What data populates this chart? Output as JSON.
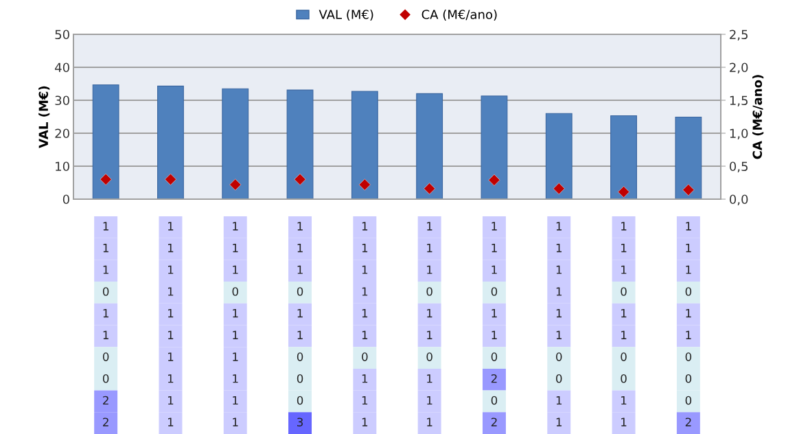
{
  "chart_data": [
    {
      "type": "bar",
      "categories": [
        null,
        null,
        null,
        null,
        null,
        null,
        null,
        null,
        null,
        null
      ],
      "series": [
        {
          "name": "VAL (M€)",
          "type": "bar",
          "color": "#4f81bd",
          "values": [
            34.7,
            34.3,
            33.5,
            33.1,
            32.7,
            32.0,
            31.3,
            26.0,
            25.3,
            24.9
          ]
        },
        {
          "name": "CA (M€/ano)",
          "type": "scatter",
          "axis": "y2",
          "color": "#c00000",
          "marker": "diamond",
          "values": [
            0.3,
            0.3,
            0.22,
            0.3,
            0.22,
            0.16,
            0.29,
            0.16,
            0.11,
            0.14
          ]
        }
      ],
      "ylabel": "VAL (M€)",
      "y2label": "CA (M€/ano)",
      "ylim": [
        0,
        50
      ],
      "yticks": [
        0,
        10,
        20,
        30,
        40,
        50
      ],
      "y2lim": [
        0,
        2.5
      ],
      "y2ticks": [
        {
          "value": 0,
          "label": "0,0"
        },
        {
          "value": 0.5,
          "label": "0,5"
        },
        {
          "value": 1,
          "label": "1,0"
        },
        {
          "value": 1.5,
          "label": "1,5"
        },
        {
          "value": 2,
          "label": "2,0"
        },
        {
          "value": 2.5,
          "label": "2,5"
        }
      ],
      "grid": "y",
      "legend": "top",
      "tick_labels": "y"
    },
    {
      "type": "heatmap",
      "categories": [
        null,
        null,
        null,
        null,
        null,
        null,
        null,
        null,
        null,
        null
      ],
      "y_categories": [
        null,
        null,
        null,
        null,
        null,
        null,
        null,
        null,
        null,
        null
      ],
      "colors": [
        "#daeef3",
        "#ccccff",
        "#9999ff",
        "#6666ff"
      ],
      "data_labels": true,
      "cells": [
        [
          1,
          1,
          1,
          1,
          1,
          1,
          1,
          1,
          1,
          1
        ],
        [
          1,
          1,
          1,
          1,
          1,
          1,
          1,
          1,
          1,
          1
        ],
        [
          1,
          1,
          1,
          1,
          1,
          1,
          1,
          1,
          1,
          1
        ],
        [
          0,
          1,
          0,
          0,
          1,
          0,
          0,
          1,
          0,
          0
        ],
        [
          1,
          1,
          1,
          1,
          1,
          1,
          1,
          1,
          1,
          1
        ],
        [
          1,
          1,
          1,
          1,
          1,
          1,
          1,
          1,
          1,
          1
        ],
        [
          0,
          1,
          1,
          0,
          0,
          0,
          0,
          0,
          0,
          0
        ],
        [
          0,
          1,
          1,
          0,
          1,
          1,
          2,
          0,
          0,
          0
        ],
        [
          2,
          1,
          1,
          0,
          1,
          1,
          0,
          1,
          1,
          0
        ],
        [
          2,
          1,
          1,
          3,
          1,
          1,
          2,
          1,
          1,
          2
        ]
      ]
    }
  ]
}
